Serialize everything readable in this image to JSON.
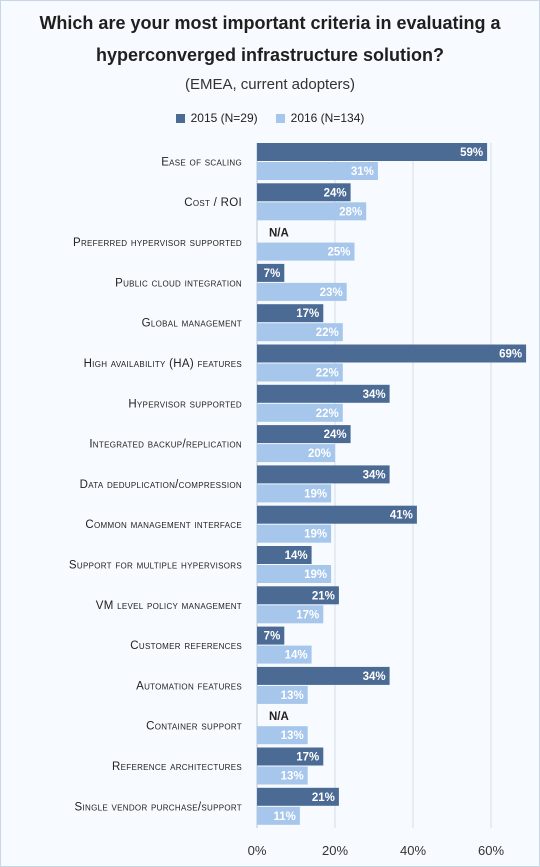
{
  "title_line1": "Which are your most important criteria  in evaluating a",
  "title_line2": "hyperconverged infrastructure solution?",
  "subtitle": "(EMEA, current adopters)",
  "legend": [
    {
      "label": "2015 (N=29)",
      "color": "#4b6a94"
    },
    {
      "label": "2016 (N=134)",
      "color": "#a6c6ec"
    }
  ],
  "chart_data": {
    "type": "bar",
    "orientation": "horizontal",
    "categories": [
      "Ease of scaling",
      "Cost / ROI",
      "Preferred hypervisor supported",
      "Public cloud integration",
      "Global management",
      "High availability (HA) features",
      "Hypervisor supported",
      "Integrated backup/replication",
      "Data deduplication/compression",
      "Common management interface",
      "Support for multiple  hypervisors",
      "VM level policy management",
      "Customer references",
      "Automation features",
      "Container support",
      "Reference architectures",
      "Single vendor purchase/support"
    ],
    "series": [
      {
        "name": "2015 (N=29)",
        "color": "#4b6a94",
        "values": [
          59,
          24,
          null,
          7,
          17,
          69,
          34,
          24,
          34,
          41,
          14,
          21,
          7,
          34,
          null,
          17,
          21
        ],
        "labels": [
          "59%",
          "24%",
          "N/A",
          "7%",
          "17%",
          "69%",
          "34%",
          "24%",
          "34%",
          "41%",
          "14%",
          "21%",
          "7%",
          "34%",
          "N/A",
          "17%",
          "21%"
        ]
      },
      {
        "name": "2016 (N=134)",
        "color": "#a6c6ec",
        "values": [
          31,
          28,
          25,
          23,
          22,
          22,
          22,
          20,
          19,
          19,
          19,
          17,
          14,
          13,
          13,
          13,
          11
        ],
        "labels": [
          "31%",
          "28%",
          "25%",
          "23%",
          "22%",
          "22%",
          "22%",
          "20%",
          "19%",
          "19%",
          "19%",
          "17%",
          "14%",
          "13%",
          "13%",
          "13%",
          "11%"
        ]
      }
    ],
    "xlim": [
      0,
      70
    ],
    "xticks": [
      0,
      20,
      40,
      60
    ],
    "xtick_labels": [
      "0%",
      "20%",
      "40%",
      "60%"
    ],
    "gridlines": true
  }
}
